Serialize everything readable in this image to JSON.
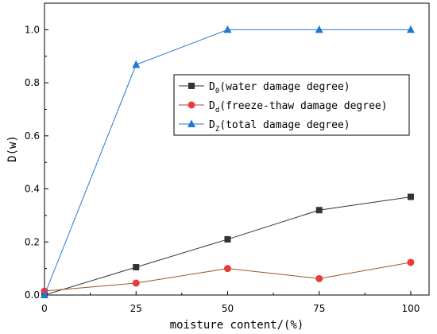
{
  "chart_data": {
    "type": "line",
    "xlabel": "moisture content/(%)",
    "ylabel": "D(w)",
    "xlim": [
      0,
      105
    ],
    "ylim": [
      0,
      1.1
    ],
    "x_ticks": [
      0,
      25,
      50,
      75,
      100
    ],
    "x_tick_labels": [
      "0",
      "25",
      "50",
      "75",
      "100"
    ],
    "y_ticks": [
      0,
      0.2,
      0.4,
      0.6,
      0.8,
      1.0
    ],
    "y_tick_labels": [
      "0.0",
      "0.2",
      "0.4",
      "0.6",
      "0.8",
      "1.0"
    ],
    "grid": false,
    "legend_position": "center-right",
    "series": [
      {
        "name": "D0(water damage degree)",
        "legend_main": "D",
        "legend_sub": "0",
        "legend_rest": "(water damage degree)",
        "marker": "square",
        "color": "#333333",
        "x": [
          0,
          25,
          50,
          75,
          100
        ],
        "values": [
          0.0,
          0.105,
          0.21,
          0.32,
          0.37
        ]
      },
      {
        "name": "Dd(freeze-thaw damage degree)",
        "legend_main": "D",
        "legend_sub": "d",
        "legend_rest": "(freeze-thaw damage degree)",
        "marker": "circle",
        "color": "#e83b3b",
        "line_color": "#a0522d",
        "x": [
          0,
          25,
          50,
          75,
          100
        ],
        "values": [
          0.015,
          0.045,
          0.1,
          0.062,
          0.123
        ]
      },
      {
        "name": "DZ(total damage degree)",
        "legend_main": "D",
        "legend_sub": "Z",
        "legend_rest": "(total damage degree)",
        "marker": "triangle",
        "color": "#1f77d4",
        "x": [
          0,
          25,
          50,
          75,
          100
        ],
        "values": [
          0.0,
          0.868,
          1.0,
          1.0,
          1.0
        ]
      }
    ]
  }
}
